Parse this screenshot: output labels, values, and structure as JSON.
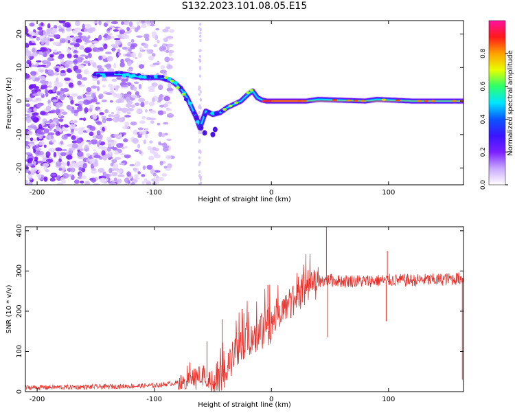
{
  "page": {
    "title": "S132.2023.101.08.05.E15"
  },
  "chart_data": [
    {
      "type": "heatmap",
      "title": "",
      "xlabel": "Height of straight line (km)",
      "ylabel": "Frequency (Hz)",
      "xlim": [
        -210,
        164
      ],
      "ylim": [
        -25,
        24
      ],
      "xticks": [
        -200,
        -100,
        0,
        100
      ],
      "yticks": [
        -20,
        -10,
        0,
        10,
        20
      ],
      "grid": false,
      "colorbar": {
        "label": "Normalized spectral amplitude",
        "range": [
          0,
          1
        ],
        "ticks": [
          0.0,
          0.2,
          0.4,
          0.6,
          0.8
        ],
        "colors": [
          "#ffffff",
          "#c9a8ff",
          "#7a1fff",
          "#3a14ff",
          "#0a55ff",
          "#00e6ff",
          "#2cff6a",
          "#e8ff00",
          "#ffa000",
          "#ff1a1a",
          "#ff10a0"
        ]
      },
      "ridge": {
        "x": [
          -150,
          -125,
          -110,
          -95,
          -85,
          -78,
          -72,
          -68,
          -64,
          -61,
          -56,
          -50,
          -44,
          -38,
          -32,
          -26,
          -20,
          -16,
          -12,
          -8,
          -4,
          0,
          30,
          40,
          80,
          90,
          120,
          164
        ],
        "y": [
          8,
          8,
          7,
          7,
          6,
          4,
          1,
          -2,
          -5,
          -8,
          -3,
          -4,
          -3.5,
          -2,
          -1,
          0,
          2,
          3,
          1,
          0.3,
          0,
          0,
          0,
          0.5,
          0,
          0.5,
          0,
          0
        ]
      }
    },
    {
      "type": "line",
      "title": "",
      "xlabel": "Height of straight line (km)",
      "ylabel": "SNR (10 * v/v)",
      "xlim": [
        -210,
        164
      ],
      "ylim": [
        0,
        410
      ],
      "xticks": [
        -200,
        -100,
        0,
        100
      ],
      "yticks": [
        0,
        100,
        200,
        300,
        400
      ],
      "grid": false,
      "color": "#e8302a",
      "trend": {
        "x": [
          -210,
          -150,
          -100,
          -80,
          -70,
          -60,
          -55,
          -50,
          -45,
          -40,
          -30,
          -20,
          -10,
          0,
          10,
          20,
          30,
          40,
          50,
          60,
          80,
          100,
          120,
          140,
          164
        ],
        "y": [
          10,
          12,
          15,
          22,
          30,
          40,
          35,
          20,
          25,
          45,
          100,
          130,
          150,
          170,
          205,
          235,
          260,
          275,
          278,
          275,
          275,
          277,
          277,
          278,
          282
        ]
      },
      "spikes": [
        {
          "x": -55,
          "y": 125
        },
        {
          "x": -42,
          "y": 180
        },
        {
          "x": -25,
          "y": 205
        },
        {
          "x": -3,
          "y": 265
        },
        {
          "x": 47,
          "y": 410
        },
        {
          "x": 48,
          "y": 135
        },
        {
          "x": 98,
          "y": 175
        },
        {
          "x": 99,
          "y": 350
        },
        {
          "x": 163,
          "y": 30
        }
      ]
    }
  ]
}
